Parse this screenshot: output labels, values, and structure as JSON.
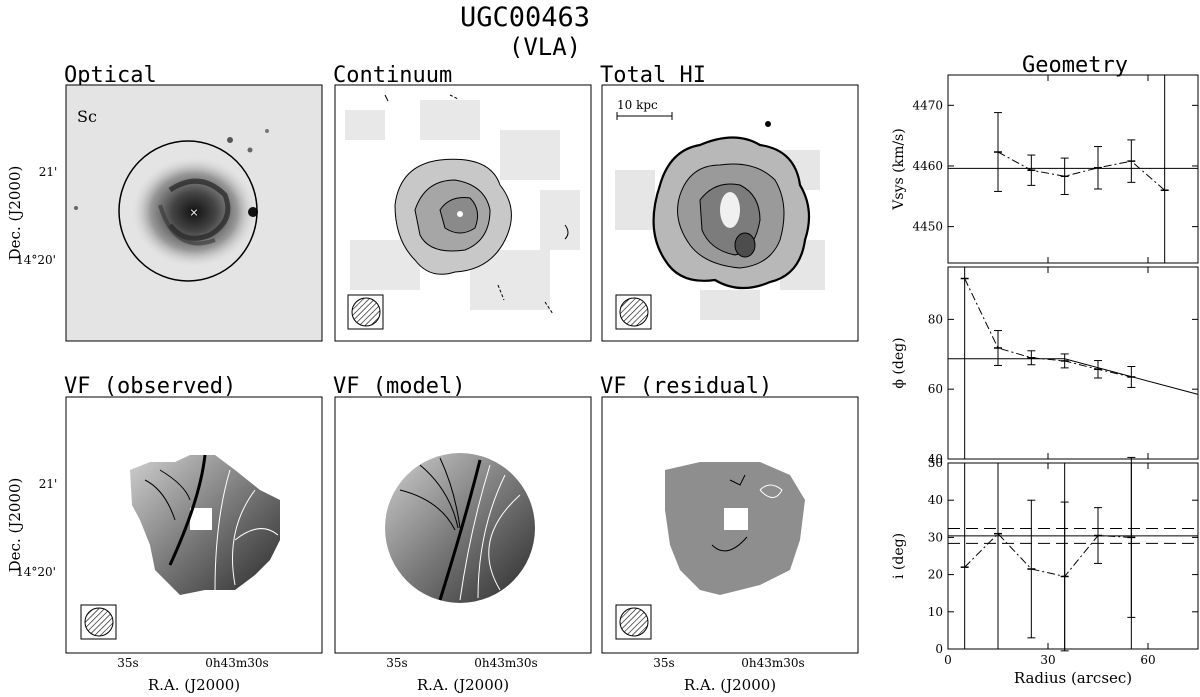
{
  "figure": {
    "title": "UGC00463",
    "subtitle": "(VLA)",
    "geometry_title": "Geometry",
    "scale_bar": "10 kpc",
    "morph_type": "Sc",
    "panels": [
      {
        "key": "optical",
        "title": "Optical"
      },
      {
        "key": "continuum",
        "title": "Continuum"
      },
      {
        "key": "totalhi",
        "title": "Total HI"
      },
      {
        "key": "vfobs",
        "title": "VF (observed)"
      },
      {
        "key": "vfmodel",
        "title": "VF (model)"
      },
      {
        "key": "vfres",
        "title": "VF (residual)"
      }
    ],
    "dec_label": "Dec. (J2000)",
    "ra_label": "R.A. (J2000)",
    "dec_ticks": [
      "21'",
      "14°20'"
    ],
    "ra_ticks": [
      "35s",
      "0h43m30s"
    ]
  },
  "chart_data": [
    {
      "type": "scatter",
      "ylabel": "Vsys (km/s)",
      "xlim": [
        0,
        75
      ],
      "ylim": [
        4444,
        4475
      ],
      "yticks": [
        4450,
        4460,
        4470
      ],
      "hline": [
        4459.6
      ],
      "x": [
        5,
        15,
        25,
        35,
        45,
        55,
        65
      ],
      "y": [
        null,
        4462.3,
        4459.3,
        4458.3,
        4459.7,
        4460.8,
        4456.0
      ],
      "err": [
        null,
        6.5,
        2.5,
        3.0,
        3.5,
        3.5,
        0
      ],
      "vlines": [
        65
      ]
    },
    {
      "type": "scatter",
      "ylabel": "ϕ (deg)",
      "xlim": [
        0,
        75
      ],
      "ylim": [
        40,
        95
      ],
      "yticks": [
        40,
        60,
        80
      ],
      "x": [
        5,
        15,
        25,
        35,
        45,
        55
      ],
      "y": [
        91.7,
        71.8,
        69.0,
        68.1,
        65.7,
        63.5
      ],
      "err": [
        0,
        5.0,
        2.0,
        2.0,
        2.5,
        3.0
      ],
      "fit_line": [
        [
          0,
          68.7
        ],
        [
          35,
          68.7
        ],
        [
          75,
          58.5
        ]
      ],
      "vlines": [
        5
      ]
    },
    {
      "type": "scatter",
      "ylabel": "i (deg)",
      "xlabel": "Radius (arcsec)",
      "xlim": [
        0,
        75
      ],
      "ylim": [
        0,
        50
      ],
      "yticks": [
        0,
        10,
        20,
        30,
        40,
        50
      ],
      "xticks": [
        0,
        30,
        60
      ],
      "hline": [
        30.4
      ],
      "dashed": [
        32.4,
        28.4
      ],
      "x": [
        5,
        15,
        25,
        35,
        45,
        55
      ],
      "y": [
        22.0,
        31.0,
        21.5,
        19.5,
        30.5,
        30.0
      ],
      "err": [
        0,
        0,
        18.5,
        20.0,
        7.5,
        21.5
      ],
      "vlines": [
        5,
        15,
        35,
        55
      ]
    }
  ]
}
